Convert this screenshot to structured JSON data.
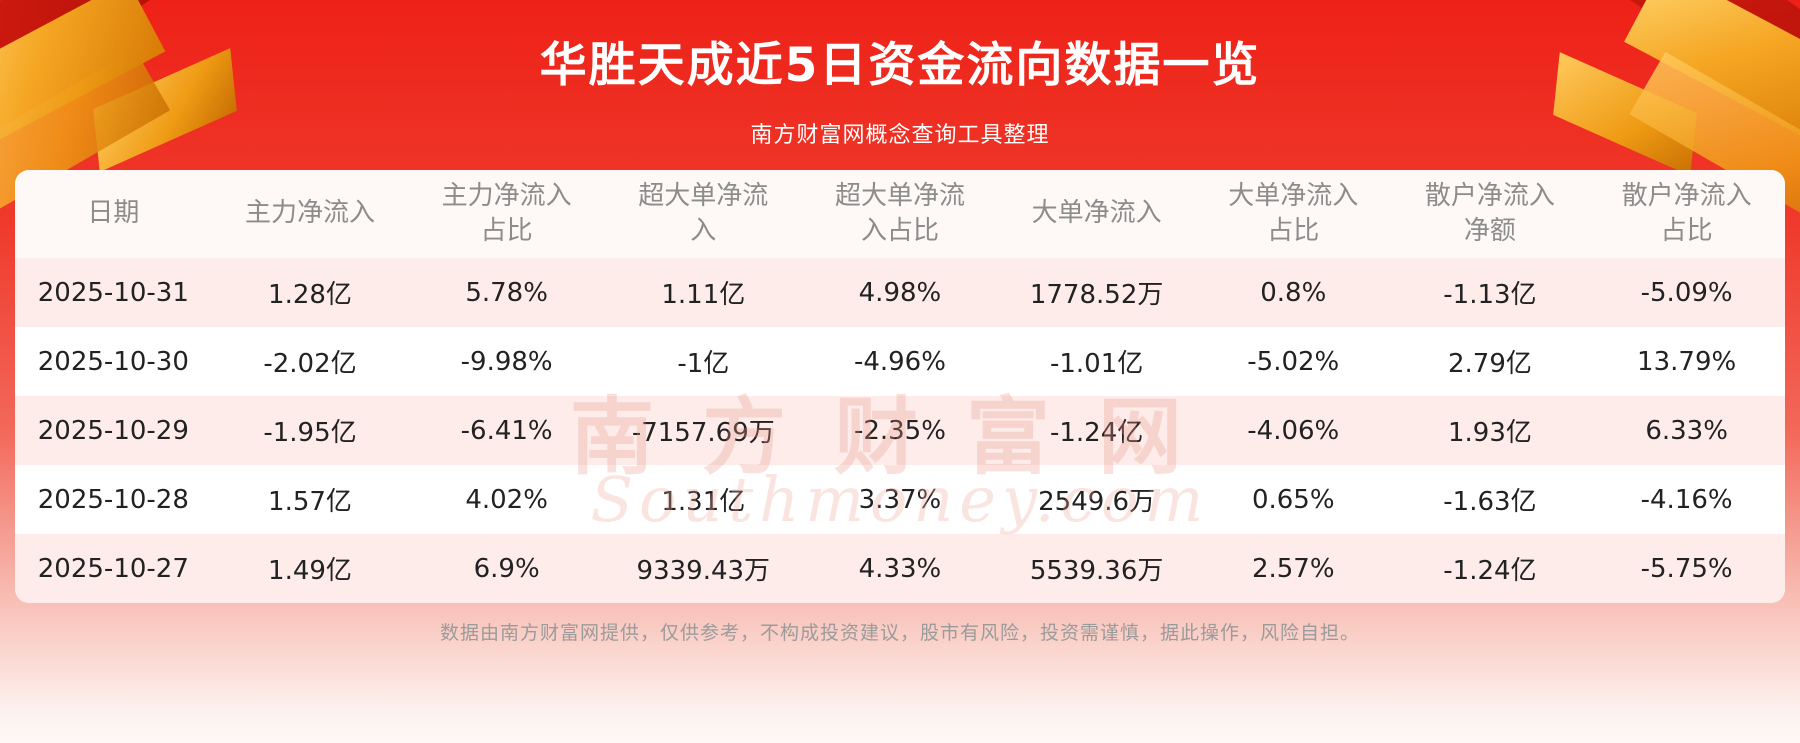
{
  "page": {
    "title": "华胜天成近5日资金流向数据一览",
    "subtitle": "南方财富网概念查询工具整理",
    "footer": "数据由南方财富网提供，仅供参考，不构成投资建议，股市有风险，投资需谨慎，据此操作，风险自担。",
    "watermark_cn": "南方财富网",
    "watermark_en": "Southmoney.com"
  },
  "colors": {
    "background_red": "#ee2117",
    "row_stripe": "#fdecea",
    "header_text": "#8c8c8c",
    "cell_text": "#222222",
    "accent_gold": "#f5a623",
    "title_text": "#ffffff"
  },
  "chart_data": {
    "type": "table",
    "title": "华胜天成近5日资金流向数据一览",
    "columns": [
      "日期",
      "主力净流入",
      "主力净流入占比",
      "超大单净流入",
      "超大单净流入占比",
      "大单净流入",
      "大单净流入占比",
      "散户净流入净额",
      "散户净流入占比"
    ],
    "rows": [
      [
        "2025-10-31",
        "1.28亿",
        "5.78%",
        "1.11亿",
        "4.98%",
        "1778.52万",
        "0.8%",
        "-1.13亿",
        "-5.09%"
      ],
      [
        "2025-10-30",
        "-2.02亿",
        "-9.98%",
        "-1亿",
        "-4.96%",
        "-1.01亿",
        "-5.02%",
        "2.79亿",
        "13.79%"
      ],
      [
        "2025-10-29",
        "-1.95亿",
        "-6.41%",
        "-7157.69万",
        "-2.35%",
        "-1.24亿",
        "-4.06%",
        "1.93亿",
        "6.33%"
      ],
      [
        "2025-10-28",
        "1.57亿",
        "4.02%",
        "1.31亿",
        "3.37%",
        "2549.6万",
        "0.65%",
        "-1.63亿",
        "-4.16%"
      ],
      [
        "2025-10-27",
        "1.49亿",
        "6.9%",
        "9339.43万",
        "4.33%",
        "5539.36万",
        "2.57%",
        "-1.24亿",
        "-5.75%"
      ]
    ]
  }
}
